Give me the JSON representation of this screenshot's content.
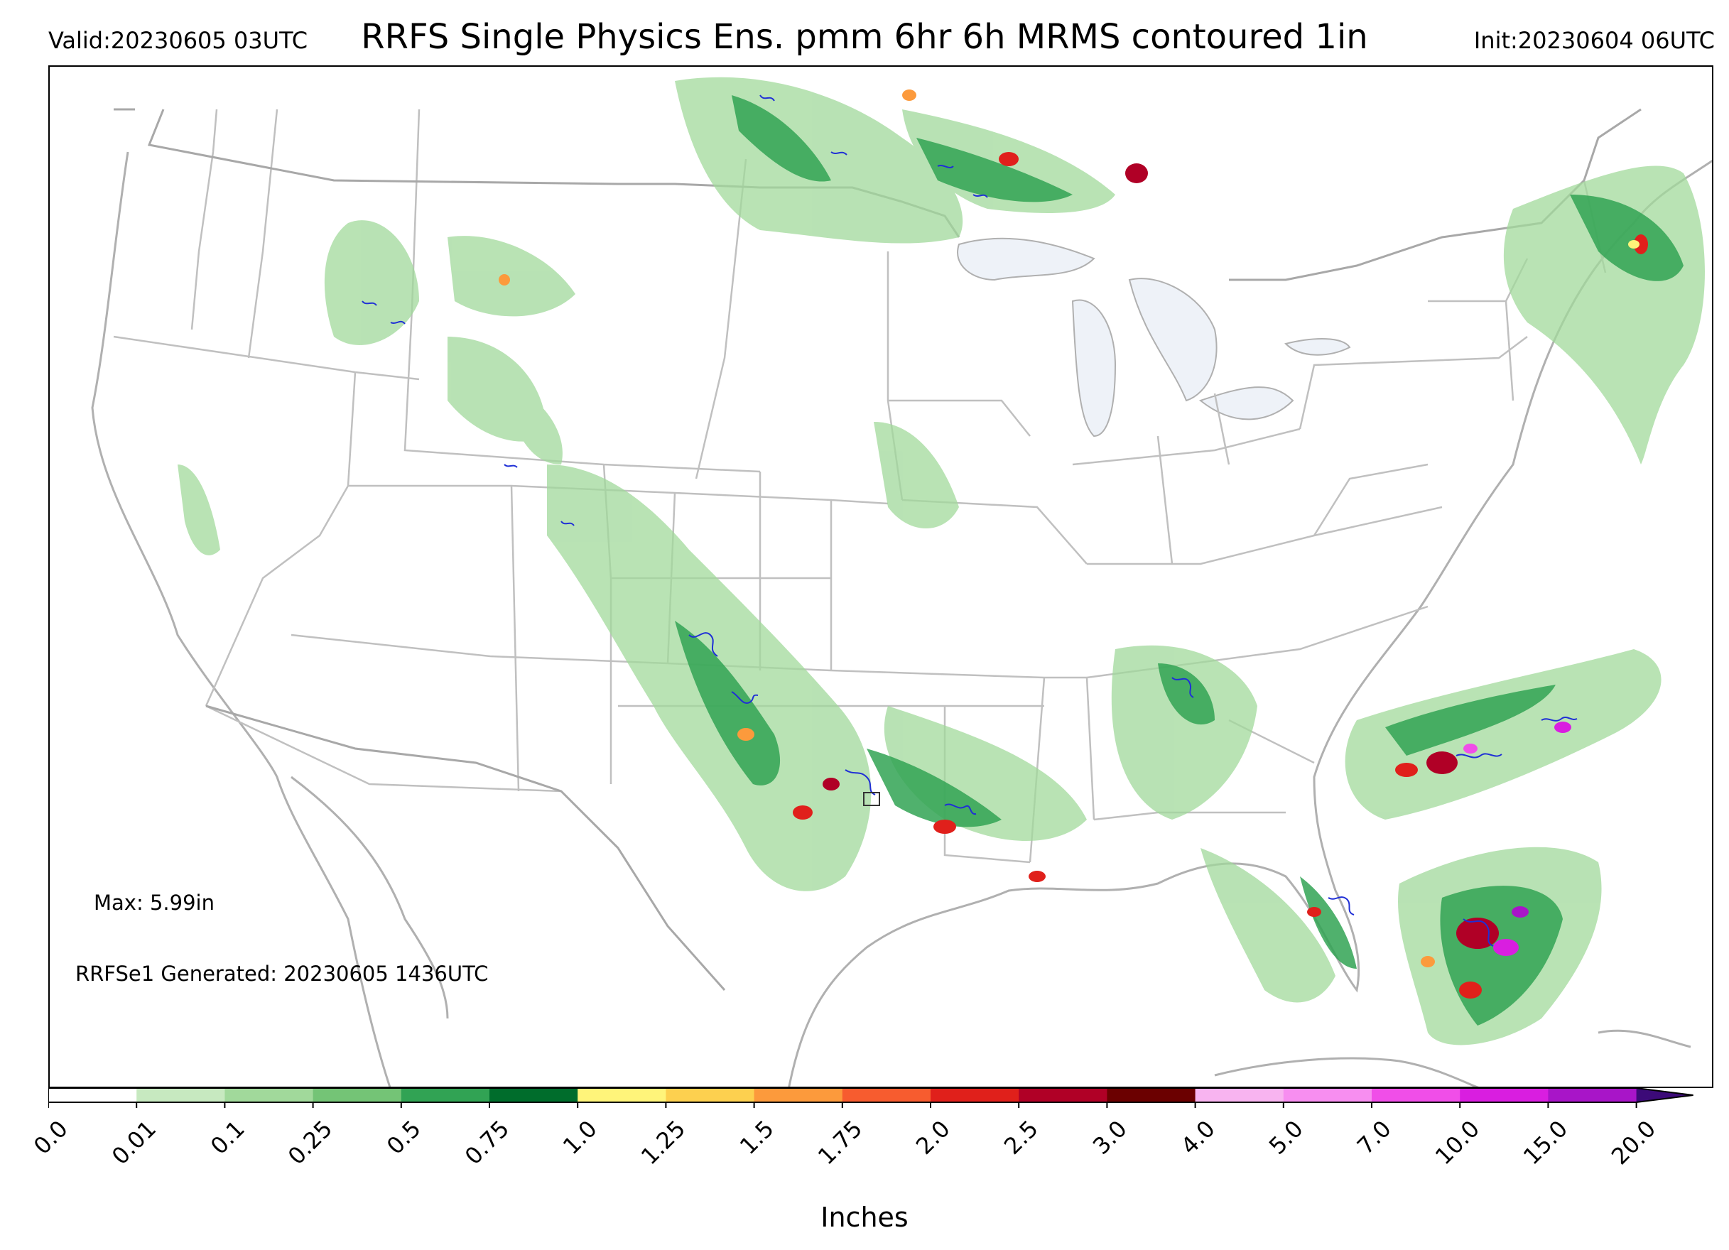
{
  "header": {
    "valid": "Valid:20230605 03UTC",
    "title": "RRFS Single Physics Ens. pmm 6hr 6h MRMS contoured 1in",
    "init": "Init:20230604 06UTC"
  },
  "annotations": {
    "max": "Max: 5.99in",
    "generated": "RRFSe1 Generated: 20230605 1436UTC"
  },
  "colorbar": {
    "label": "Inches",
    "ticks": [
      "0.0",
      "0.01",
      "0.1",
      "0.25",
      "0.5",
      "0.75",
      "1.0",
      "1.25",
      "1.5",
      "1.75",
      "2.0",
      "2.5",
      "3.0",
      "4.0",
      "5.0",
      "7.0",
      "10.0",
      "15.0",
      "20.0"
    ],
    "colors": [
      "#ffffff",
      "#c7e9c0",
      "#a1d99b",
      "#74c476",
      "#31a354",
      "#006d2c",
      "#fff47a",
      "#fdd04f",
      "#fc9a3c",
      "#f75c2f",
      "#e0201b",
      "#b00026",
      "#6b0000",
      "#f8b4f0",
      "#f78ef0",
      "#f04ee8",
      "#d91ee0",
      "#a815c8",
      "#7b1fa2"
    ],
    "extend_color": "#3c0a78"
  },
  "map": {
    "background": "#ffffff",
    "border_color": "#b0b0b0",
    "water_color": "#eef2f8",
    "contour_color": "#1f2fd6",
    "contour_threshold": "1in"
  }
}
